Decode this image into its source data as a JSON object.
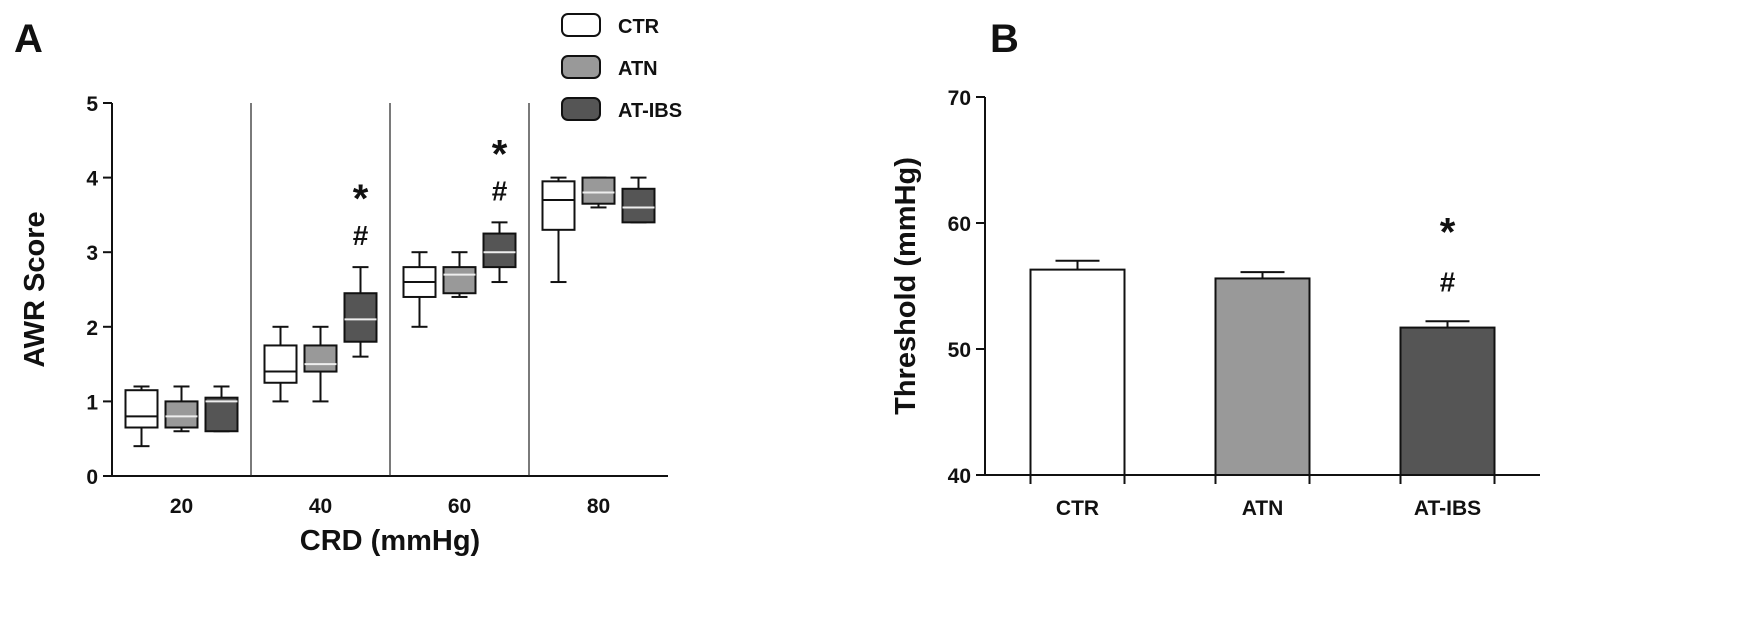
{
  "panel_a_label": "A",
  "panel_b_label": "B",
  "chart_data": [
    {
      "type": "box",
      "panel": "A",
      "title": "",
      "xlabel": "CRD (mmHg)",
      "ylabel": "AWR Score",
      "ylim": [
        0,
        5
      ],
      "yticks": [
        "0",
        "1",
        "2",
        "3",
        "4",
        "5"
      ],
      "categories": [
        "20",
        "40",
        "60",
        "80"
      ],
      "legend_position": "top-center",
      "series": [
        {
          "name": "CTR",
          "color": "#ffffff",
          "boxes": [
            {
              "min": 0.4,
              "q1": 0.65,
              "median": 0.8,
              "q3": 1.15,
              "max": 1.2
            },
            {
              "min": 1.0,
              "q1": 1.25,
              "median": 1.4,
              "q3": 1.75,
              "max": 2.0
            },
            {
              "min": 2.0,
              "q1": 2.4,
              "median": 2.6,
              "q3": 2.8,
              "max": 3.0
            },
            {
              "min": 2.6,
              "q1": 3.3,
              "median": 3.7,
              "q3": 3.95,
              "max": 4.0
            }
          ]
        },
        {
          "name": "ATN",
          "color": "#999999",
          "boxes": [
            {
              "min": 0.6,
              "q1": 0.65,
              "median": 0.8,
              "q3": 1.0,
              "max": 1.2
            },
            {
              "min": 1.0,
              "q1": 1.4,
              "median": 1.5,
              "q3": 1.75,
              "max": 2.0
            },
            {
              "min": 2.4,
              "q1": 2.45,
              "median": 2.7,
              "q3": 2.8,
              "max": 3.0
            },
            {
              "min": 3.6,
              "q1": 3.65,
              "median": 3.8,
              "q3": 4.0,
              "max": 4.0
            }
          ]
        },
        {
          "name": "AT-IBS",
          "color": "#555555",
          "boxes": [
            {
              "min": 0.6,
              "q1": 0.6,
              "median": 1.0,
              "q3": 1.05,
              "max": 1.2
            },
            {
              "min": 1.6,
              "q1": 1.8,
              "median": 2.1,
              "q3": 2.45,
              "max": 2.8
            },
            {
              "min": 2.6,
              "q1": 2.8,
              "median": 3.0,
              "q3": 3.25,
              "max": 3.4
            },
            {
              "min": 3.4,
              "q1": 3.4,
              "median": 3.6,
              "q3": 3.85,
              "max": 4.0
            }
          ]
        }
      ],
      "annotations": [
        {
          "category": "40",
          "series": "AT-IBS",
          "star": "*",
          "hash": "#"
        },
        {
          "category": "60",
          "series": "AT-IBS",
          "star": "*",
          "hash": "#"
        }
      ]
    },
    {
      "type": "bar",
      "panel": "B",
      "title": "",
      "xlabel": "",
      "ylabel": "Threshold (mmHg)",
      "ylim": [
        40,
        70
      ],
      "yticks": [
        "40",
        "50",
        "60",
        "70"
      ],
      "categories": [
        "CTR",
        "ATN",
        "AT-IBS"
      ],
      "values": [
        56.3,
        55.6,
        51.7
      ],
      "errors": [
        0.7,
        0.5,
        0.5
      ],
      "colors": [
        "#ffffff",
        "#999999",
        "#555555"
      ],
      "annotations": [
        {
          "category": "AT-IBS",
          "star": "*",
          "hash": "#"
        }
      ]
    }
  ]
}
